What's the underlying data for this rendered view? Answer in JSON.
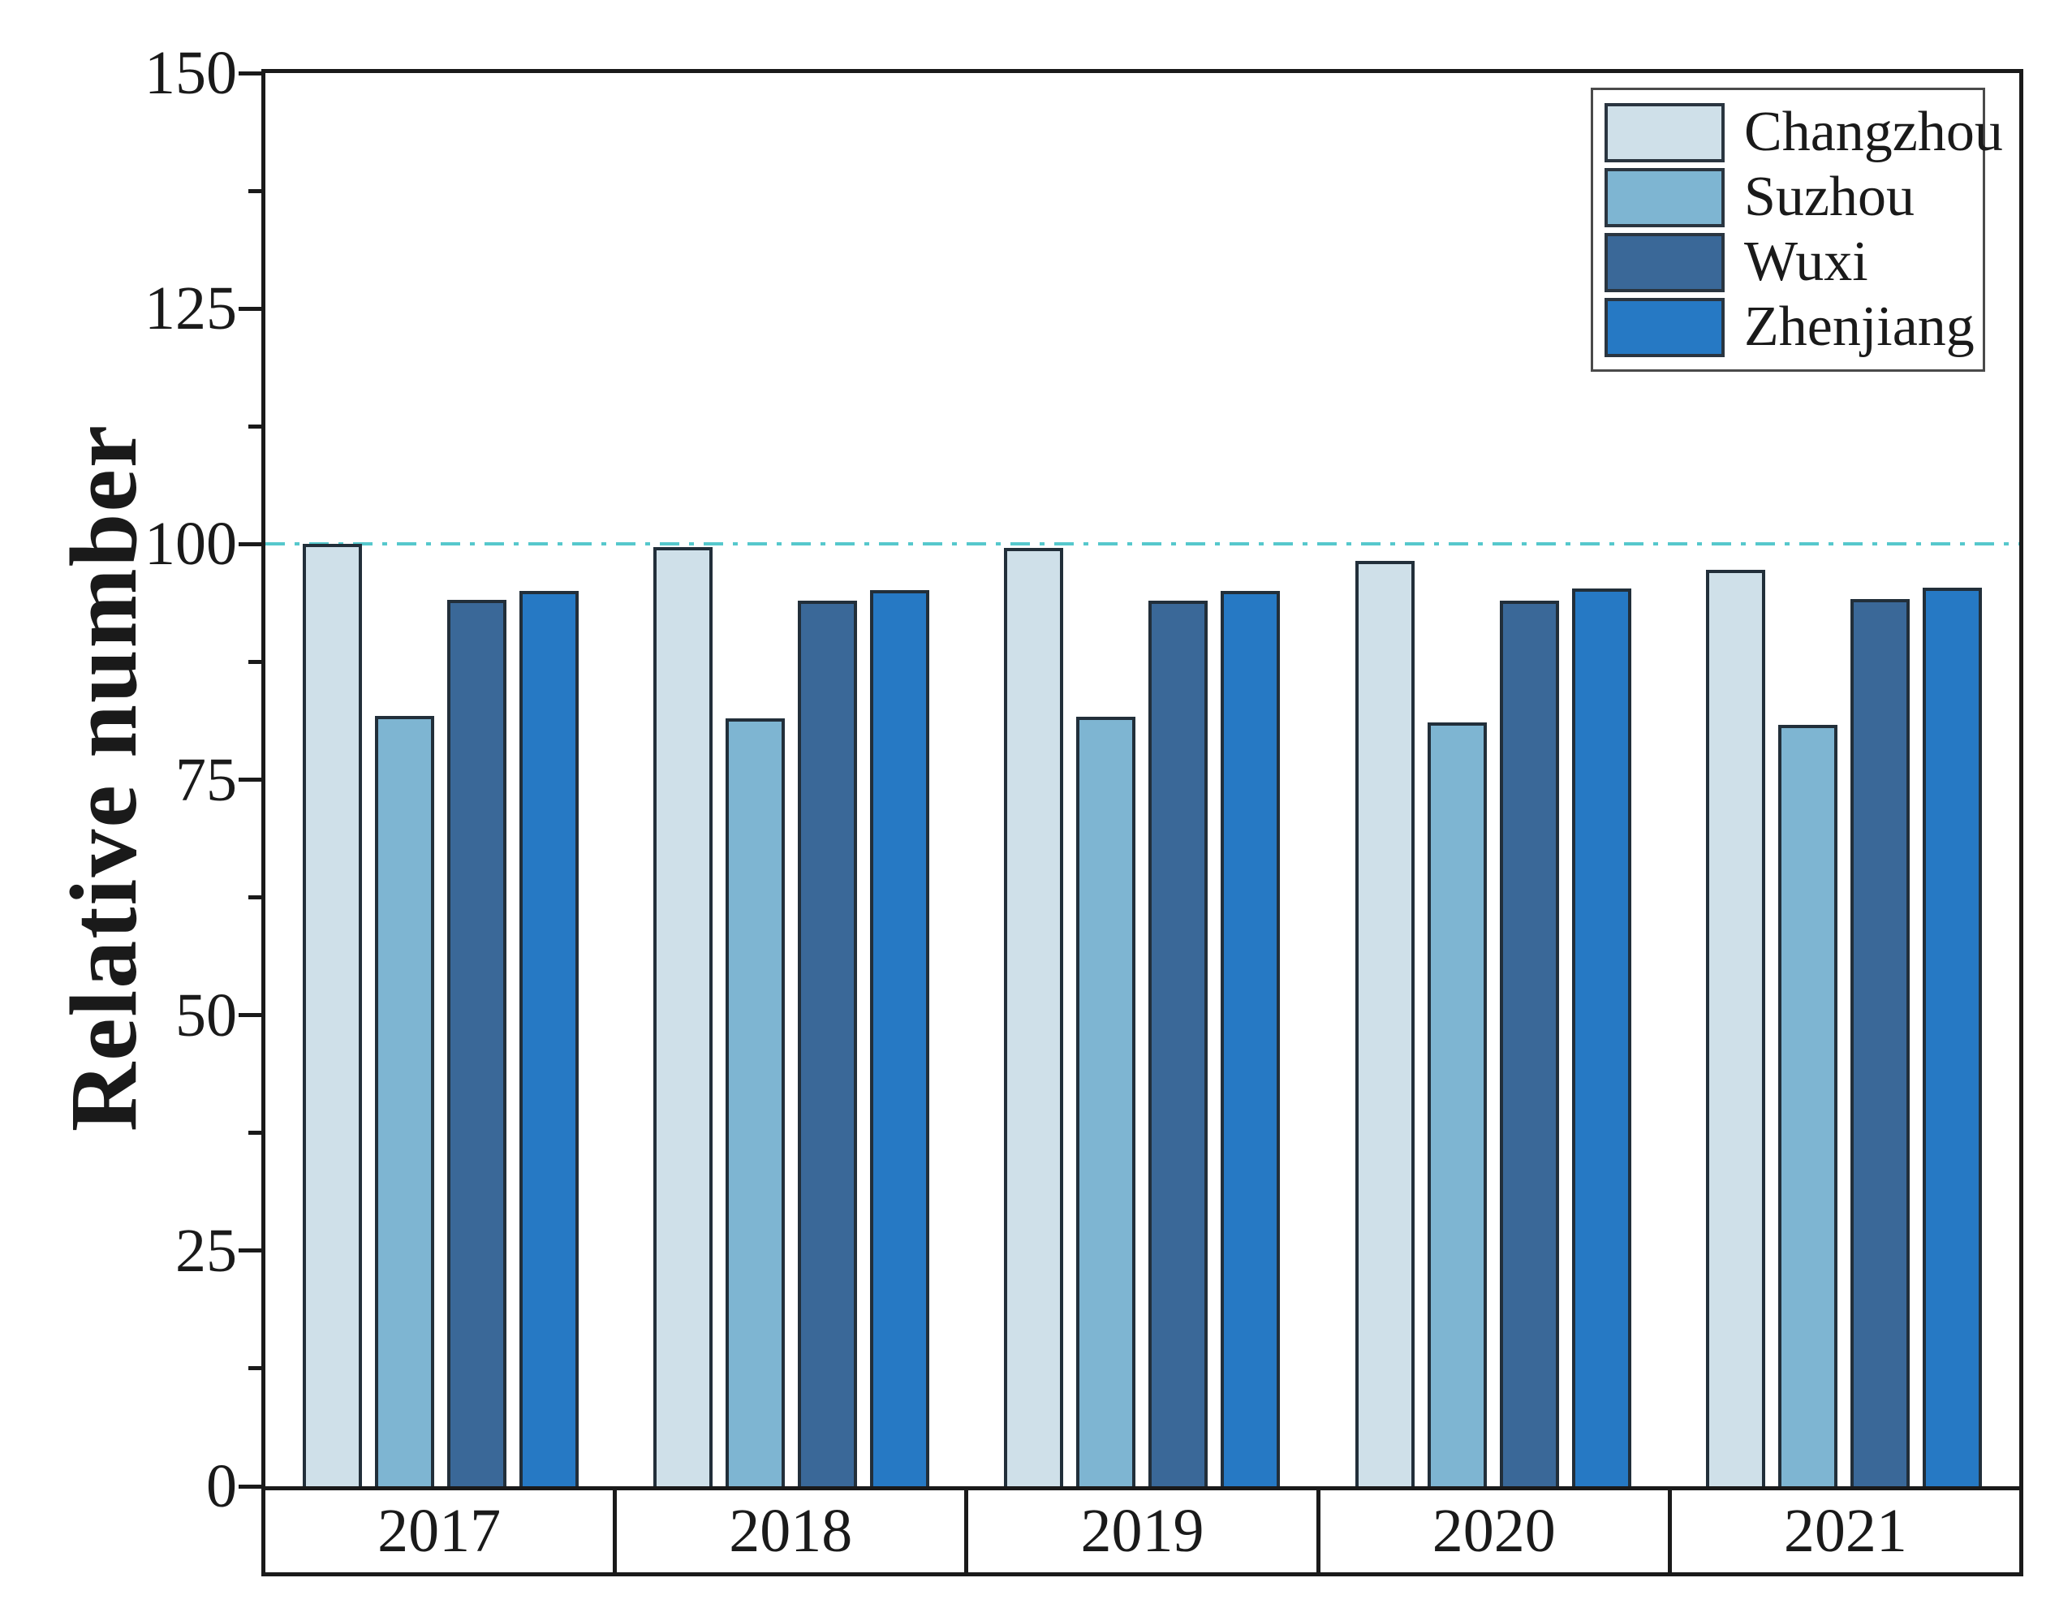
{
  "chart_data": {
    "type": "bar",
    "title": "",
    "xlabel": "",
    "ylabel": "Relative number",
    "categories": [
      "2017",
      "2018",
      "2019",
      "2020",
      "2021"
    ],
    "series": [
      {
        "name": "Changzhou",
        "color": "#cfe0e9",
        "values": [
          100,
          99.7,
          99.6,
          98.2,
          97.3
        ]
      },
      {
        "name": "Suzhou",
        "color": "#7eb5d2",
        "values": [
          81.8,
          81.5,
          81.7,
          81.1,
          80.8
        ]
      },
      {
        "name": "Wuxi",
        "color": "#3a6898",
        "values": [
          94.1,
          94.0,
          94.0,
          94.0,
          94.2
        ]
      },
      {
        "name": "Zhenjiang",
        "color": "#2679c4",
        "values": [
          95.0,
          95.1,
          95.0,
          95.3,
          95.4
        ]
      }
    ],
    "ylim": [
      0,
      150
    ],
    "yticks": [
      0,
      25,
      50,
      75,
      100,
      125,
      150
    ],
    "minor_ytick_step": 12.5,
    "reference_line": {
      "y": 100,
      "color": "#56c8cc",
      "style": "dash-dot"
    },
    "legend_position": "top-right",
    "grid": false,
    "bar_border_color": "#222f3a",
    "axis_color": "#1a1a1a"
  }
}
